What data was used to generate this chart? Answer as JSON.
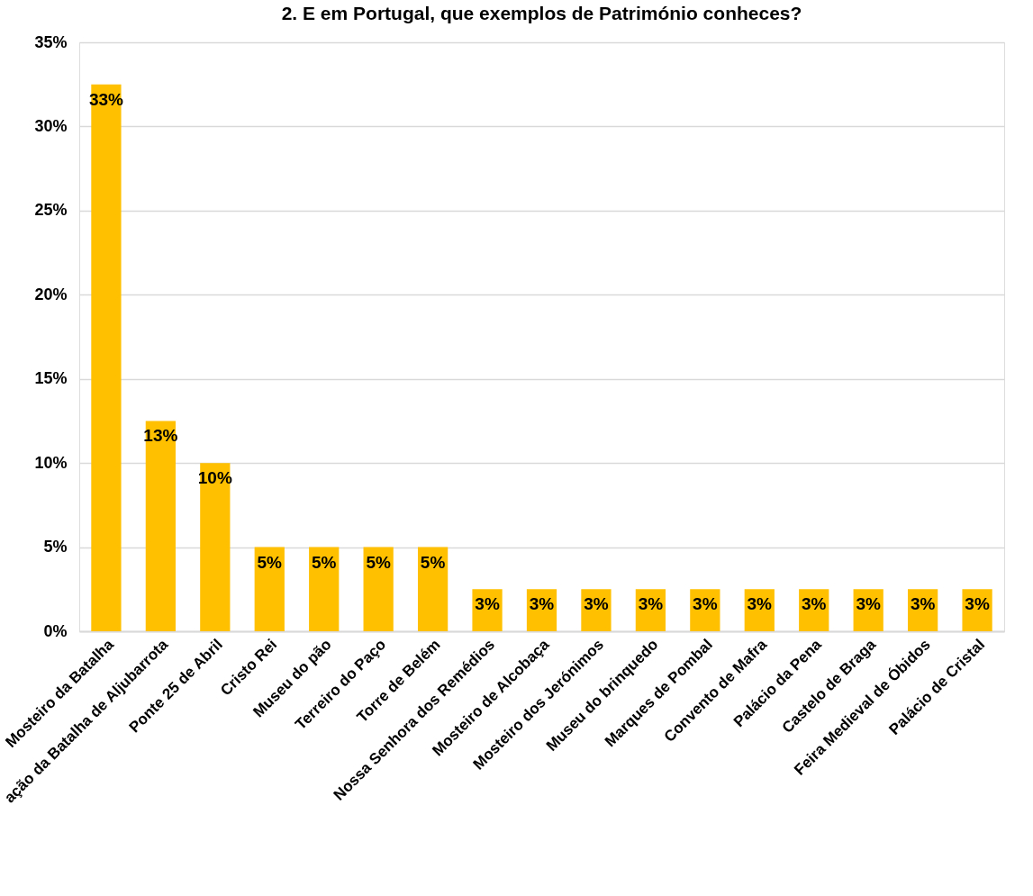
{
  "chart_data": {
    "type": "bar",
    "title": "2. E em Portugal, que exemplos de Património conheces?",
    "categories": [
      "Mosteiro da Batalha",
      "ação da Batalha de Aljubarrota",
      "Ponte 25 de Abril",
      "Cristo Rei",
      "Museu do pão",
      "Terreiro do Paço",
      "Torre de Belém",
      "Nossa Senhora dos Remédios",
      "Mosteiro de Alcobaça",
      "Mosteiro dos Jerónimos",
      "Museu do brinquedo",
      "Marques de Pombal",
      "Convento de Mafra",
      "Palácio da Pena",
      "Castelo de Braga",
      "Feira Medieval de Óbidos",
      "Palácio de Cristal"
    ],
    "values": [
      32.5,
      12.5,
      10,
      5,
      5,
      5,
      5,
      2.5,
      2.5,
      2.5,
      2.5,
      2.5,
      2.5,
      2.5,
      2.5,
      2.5,
      2.5
    ],
    "value_labels": [
      "33%",
      "13%",
      "10%",
      "5%",
      "5%",
      "5%",
      "5%",
      "3%",
      "3%",
      "3%",
      "3%",
      "3%",
      "3%",
      "3%",
      "3%",
      "3%",
      "3%"
    ],
    "color": "#ffc000",
    "ylim": [
      0,
      35
    ],
    "yticks": [
      {
        "value": 0,
        "label": "0%"
      },
      {
        "value": 5,
        "label": "5%"
      },
      {
        "value": 10,
        "label": "10%"
      },
      {
        "value": 15,
        "label": "15%"
      },
      {
        "value": 20,
        "label": "20%"
      },
      {
        "value": 25,
        "label": "25%"
      },
      {
        "value": 30,
        "label": "30%"
      },
      {
        "value": 35,
        "label": "35%"
      }
    ],
    "grid": "y"
  }
}
